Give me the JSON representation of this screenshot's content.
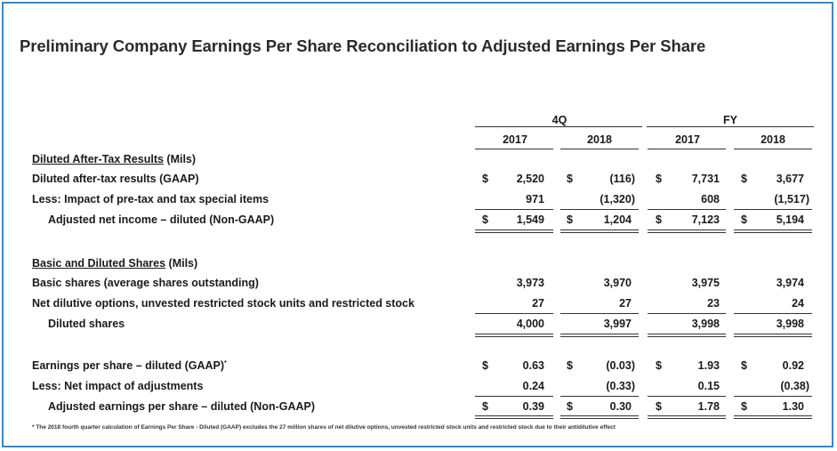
{
  "title": "Preliminary Company Earnings Per Share Reconciliation to Adjusted Earnings Per Share",
  "headers": {
    "group_4q": "4Q",
    "group_fy": "FY",
    "cols": [
      "2017",
      "2018",
      "2017",
      "2018"
    ]
  },
  "section1": {
    "heading": "Diluted After-Tax Results",
    "heading_suffix": " (Mils)",
    "rows": [
      {
        "label": "Diluted after-tax results (GAAP)",
        "cur": [
          "$",
          "$",
          "$",
          "$"
        ],
        "values": [
          "2,520",
          "(116)",
          "7,731",
          "3,677"
        ]
      },
      {
        "label": "Less:  Impact of pre-tax and tax special items",
        "cur": [
          "",
          "",
          "",
          ""
        ],
        "values": [
          "971",
          "(1,320)",
          "608",
          "(1,517)"
        ]
      },
      {
        "label": "Adjusted net income – diluted (Non-GAAP)",
        "cur": [
          "$",
          "$",
          "$",
          "$"
        ],
        "values": [
          "1,549",
          "1,204",
          "7,123",
          "5,194"
        ]
      }
    ]
  },
  "section2": {
    "heading": "Basic and Diluted Shares",
    "heading_suffix": " (Mils)",
    "rows": [
      {
        "label": "Basic shares (average shares outstanding)",
        "values": [
          "3,973",
          "3,970",
          "3,975",
          "3,974"
        ]
      },
      {
        "label": "Net dilutive options, unvested restricted stock units and restricted stock",
        "values": [
          "27",
          "27",
          "23",
          "24"
        ]
      },
      {
        "label": "Diluted shares",
        "values": [
          "4,000",
          "3,997",
          "3,998",
          "3,998"
        ]
      }
    ]
  },
  "section3": {
    "rows": [
      {
        "label": "Earnings per share – diluted (GAAP)",
        "sup": "*",
        "cur": [
          "$",
          "$",
          "$",
          "$"
        ],
        "values": [
          "0.63",
          "(0.03)",
          "1.93",
          "0.92"
        ]
      },
      {
        "label": "Less:  Net impact of adjustments",
        "cur": [
          "",
          "",
          "",
          ""
        ],
        "values": [
          "0.24",
          "(0.33)",
          "0.15",
          "(0.38)"
        ]
      },
      {
        "label": "Adjusted earnings per share – diluted (Non-GAAP)",
        "cur": [
          "$",
          "$",
          "$",
          "$"
        ],
        "values": [
          "0.39",
          "0.30",
          "1.78",
          "1.30"
        ]
      }
    ]
  },
  "footnote": "* The 2018 fourth quarter calculation of Earnings Per Share - Diluted (GAAP) excludes the 27 million shares of net dilutive options, unvested restricted stock units and restricted stock due to their antidilutive effect"
}
